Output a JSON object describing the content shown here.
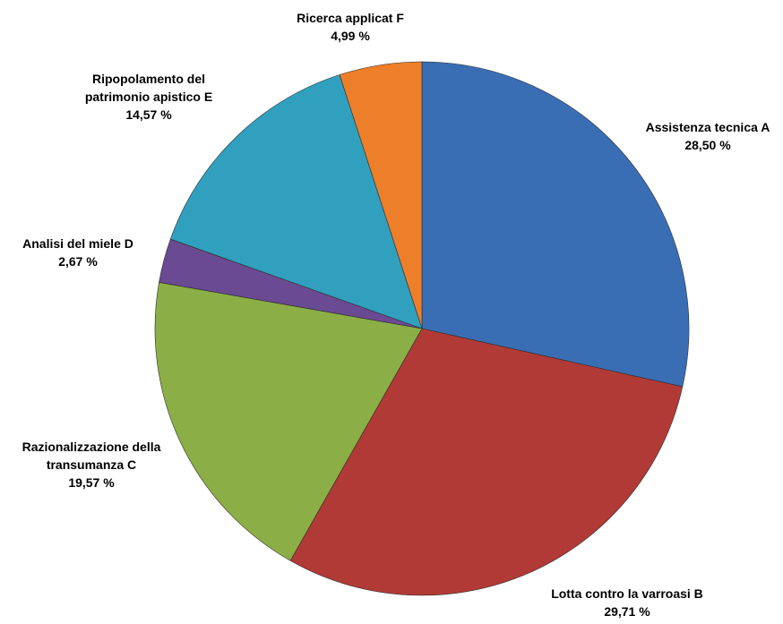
{
  "chart_data": {
    "type": "pie",
    "categories": [
      "Assistenza tecnica A",
      "Lotta contro la varroasi B",
      "Razionalizzazione della transumanza C",
      "Analisi del miele D",
      "Ripopolamento del patrimonio apistico E",
      "Ricerca applicat F"
    ],
    "values": [
      28.5,
      29.71,
      19.57,
      2.67,
      14.57,
      4.99
    ],
    "value_labels": [
      "28,50 %",
      "29,71 %",
      "19,57 %",
      "2,67 %",
      "14,57 %",
      "4,99 %"
    ],
    "colors": [
      "#3a6eb4",
      "#b23a36",
      "#8bae46",
      "#6a4a92",
      "#31a0bf",
      "#ee7f2a"
    ]
  }
}
